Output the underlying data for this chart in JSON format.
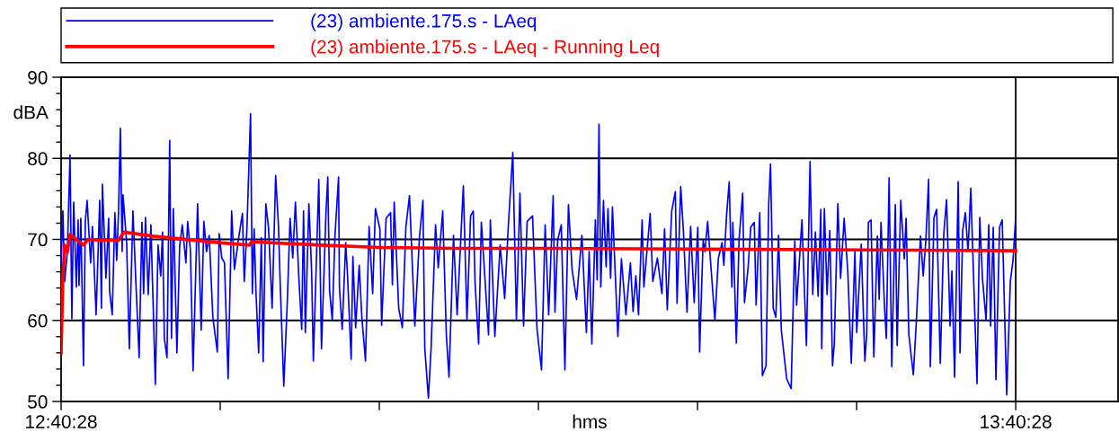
{
  "chart_data": {
    "type": "line",
    "xlabel": "hms",
    "ylabel": "dBA",
    "xlim": [
      12.67444,
      13.7817
    ],
    "ylim": [
      50,
      90
    ],
    "xticks": [
      {
        "value": 12.67444,
        "label": "12:40:28"
      },
      {
        "value": 12.84111,
        "label": null
      },
      {
        "value": 13.00778,
        "label": null
      },
      {
        "value": 13.17444,
        "label": null
      },
      {
        "value": 13.34111,
        "label": null
      },
      {
        "value": 13.50778,
        "label": null
      },
      {
        "value": 13.67444,
        "label": "13:40:28"
      }
    ],
    "yticks": [
      50,
      60,
      70,
      80,
      90
    ],
    "grid": "y",
    "legend": "top",
    "line_style": "solid",
    "marker": "none",
    "ref_lines": [
      {
        "axis": "x",
        "value": 13.67444,
        "label": null,
        "color": "#000000"
      }
    ],
    "series": [
      {
        "name": "(23) ambiente.175.s - LAeq",
        "color": "#0000ff",
        "x": [
          12.67444,
          12.6763,
          12.6782,
          12.681,
          12.6838,
          12.6857,
          12.6876,
          12.6904,
          12.6923,
          12.6932,
          12.6951,
          12.6979,
          12.6998,
          12.7017,
          12.7054,
          12.7073,
          12.7111,
          12.7149,
          12.7167,
          12.7177,
          12.7214,
          12.7243,
          12.7252,
          12.728,
          12.7308,
          12.7327,
          12.7346,
          12.7365,
          12.7384,
          12.7393,
          12.7431,
          12.7459,
          12.7497,
          12.7525,
          12.7562,
          12.7591,
          12.7609,
          12.7628,
          12.7657,
          12.7685,
          12.7732,
          12.776,
          12.7788,
          12.7807,
          12.7826,
          12.7854,
          12.7882,
          12.7901,
          12.792,
          12.7958,
          12.7986,
          12.8014,
          12.8052,
          12.807,
          12.8099,
          12.8127,
          12.8174,
          12.8212,
          12.824,
          12.8268,
          12.8296,
          12.8334,
          12.8381,
          12.84,
          12.8428,
          12.8456,
          12.8494,
          12.8531,
          12.856,
          12.8607,
          12.8644,
          12.8663,
          12.8691,
          12.8729,
          12.8748,
          12.8767,
          12.8785,
          12.8814,
          12.8842,
          12.8861,
          12.8889,
          12.8917,
          12.8955,
          12.8992,
          12.9021,
          12.9039,
          12.9077,
          12.9115,
          12.9143,
          12.9171,
          12.9199,
          12.9237,
          12.9265,
          12.9284,
          12.9303,
          12.934,
          12.9369,
          12.9387,
          12.9444,
          12.9472,
          12.9519,
          12.9538,
          12.9557,
          12.9585,
          12.9613,
          12.9651,
          12.966,
          12.9689,
          12.9726,
          12.9745,
          12.9783,
          12.9801,
          12.983,
          12.9867,
          12.9895,
          12.9933,
          12.9971,
          13.0008,
          13.0037,
          13.0084,
          13.0102,
          13.0149,
          13.0196,
          13.0215,
          13.0234,
          13.0281,
          13.0319,
          13.0356,
          13.0394,
          13.045,
          13.0498,
          13.0535,
          13.0554,
          13.0592,
          13.062,
          13.0667,
          13.0695,
          13.0742,
          13.078,
          13.0808,
          13.0855,
          13.0893,
          13.0958,
          13.0996,
          13.1034,
          13.1062,
          13.1081,
          13.1118,
          13.1147,
          13.1222,
          13.1241,
          13.1288,
          13.1344,
          13.1391,
          13.1429,
          13.1476,
          13.1514,
          13.1551,
          13.1589,
          13.1626,
          13.1683,
          13.173,
          13.1777,
          13.1815,
          13.1852,
          13.1899,
          13.1918,
          13.1946,
          13.1984,
          13.2022,
          13.2059,
          13.2097,
          13.2144,
          13.22,
          13.2247,
          13.2276,
          13.2304,
          13.2341,
          13.236,
          13.2379,
          13.2398,
          13.2426,
          13.2454,
          13.2473,
          13.2501,
          13.252,
          13.2577,
          13.2614,
          13.2661,
          13.2708,
          13.2736,
          13.2765,
          13.2793,
          13.2831,
          13.2849,
          13.2915,
          13.2943,
          13.2991,
          13.3038,
          13.3066,
          13.3094,
          13.3141,
          13.3179,
          13.3197,
          13.3235,
          13.3263,
          13.3301,
          13.3339,
          13.3376,
          13.3414,
          13.3433,
          13.347,
          13.3489,
          13.3517,
          13.3593,
          13.363,
          13.3668,
          13.3687,
          13.3715,
          13.3743,
          13.3771,
          13.3781,
          13.3818,
          13.3846,
          13.3884,
          13.3903,
          13.3941,
          13.3969,
          13.4006,
          13.4025,
          13.4063,
          13.4091,
          13.4129,
          13.4157,
          13.4176,
          13.4204,
          13.4232,
          13.426,
          13.4289,
          13.4345,
          13.4392,
          13.443,
          13.4449,
          13.4505,
          13.4552,
          13.459,
          13.4618,
          13.4646,
          13.4674,
          13.4703,
          13.4712,
          13.474,
          13.4768,
          13.4797,
          13.4825,
          13.4844,
          13.4881,
          13.491,
          13.4947,
          13.4985,
          13.5022,
          13.506,
          13.5079,
          13.5126,
          13.5164,
          13.5183,
          13.5201,
          13.5229,
          13.5258,
          13.5295,
          13.5314,
          13.5333,
          13.5371,
          13.5389,
          13.5418,
          13.5446,
          13.5483,
          13.5502,
          13.554,
          13.5577,
          13.5596,
          13.5625,
          13.5672,
          13.57,
          13.5747,
          13.5775,
          13.5803,
          13.5832,
          13.585,
          13.5888,
          13.5916,
          13.5954,
          13.5991,
          13.602,
          13.6057,
          13.6076,
          13.6104,
          13.6142,
          13.6161,
          13.6189,
          13.6217,
          13.6245,
          13.6274,
          13.6292,
          13.6339,
          13.6368,
          13.6396,
          13.6434,
          13.6462,
          13.6481,
          13.6509,
          13.6537,
          13.6575,
          13.6603,
          13.665,
          13.6688,
          13.6716,
          13.6744
        ],
        "values": [
          67.0,
          73.5,
          64.8,
          68.5,
          80.4,
          60.2,
          74.6,
          64.1,
          72.4,
          64.3,
          72.6,
          54.4,
          72.2,
          74.8,
          67.1,
          71.6,
          60.7,
          74.8,
          61.5,
          76.8,
          65.2,
          72.6,
          63.7,
          60.7,
          73.3,
          67.4,
          73.3,
          83.7,
          68.5,
          75.5,
          69.6,
          56.5,
          73.5,
          65.5,
          55.4,
          72.1,
          63.3,
          72.7,
          63.2,
          71.8,
          52.1,
          69.3,
          65.5,
          70.9,
          57.8,
          55.4,
          82.2,
          57.8,
          73.8,
          56.0,
          69.1,
          71.8,
          67.1,
          72.2,
          68.7,
          53.8,
          74.4,
          58.8,
          72.2,
          68.5,
          70.5,
          60.4,
          56.1,
          70.7,
          67.7,
          67.1,
          52.8,
          73.5,
          66.3,
          70.4,
          73.2,
          64.8,
          71.3,
          85.5,
          63.3,
          71.3,
          63.7,
          56.0,
          70.2,
          54.9,
          74.4,
          71.5,
          61.5,
          77.9,
          71.8,
          64.8,
          51.9,
          62.6,
          72.6,
          67.7,
          74.6,
          64.8,
          58.9,
          73.5,
          58.5,
          74.4,
          66.0,
          55.0,
          77.4,
          56.5,
          73.3,
          77.7,
          63.7,
          60.0,
          70.4,
          77.7,
          64.1,
          58.9,
          69.6,
          65.5,
          55.2,
          67.9,
          59.1,
          66.8,
          60.4,
          55.0,
          71.6,
          63.3,
          73.8,
          71.3,
          59.4,
          72.6,
          73.3,
          64.4,
          74.6,
          61.5,
          59.1,
          71.5,
          75.4,
          59.3,
          70.2,
          74.8,
          56.6,
          50.4,
          56.5,
          71.8,
          66.5,
          73.5,
          58.2,
          53.0,
          70.5,
          60.7,
          76.6,
          60.0,
          72.9,
          73.5,
          64.6,
          57.1,
          72.1,
          58.2,
          72.4,
          58.0,
          69.3,
          62.7,
          71.6,
          80.7,
          60.0,
          75.7,
          59.3,
          72.2,
          72.9,
          58.9,
          53.9,
          71.8,
          60.7,
          75.4,
          61.0,
          69.9,
          71.8,
          53.9,
          74.3,
          66.3,
          62.6,
          70.5,
          58.5,
          68.5,
          57.1,
          72.4,
          65.0,
          84.2,
          64.1,
          74.8,
          66.6,
          73.8,
          65.2,
          74.0,
          58.0,
          67.6,
          60.7,
          67.1,
          61.1,
          65.5,
          60.7,
          72.4,
          64.1,
          73.2,
          64.8,
          67.7,
          63.3,
          71.3,
          61.3,
          73.5,
          75.9,
          62.1,
          76.5,
          71.1,
          61.0,
          71.6,
          62.2,
          71.5,
          56.1,
          69.9,
          68.5,
          72.2,
          60.0,
          67.7,
          69.6,
          66.8,
          72.9,
          77.1,
          64.1,
          72.1,
          57.2,
          69.9,
          75.7,
          62.2,
          66.5,
          71.5,
          72.1,
          61.9,
          73.3,
          53.2,
          54.4,
          74.3,
          79.3,
          61.5,
          60.4,
          70.5,
          58.8,
          52.8,
          51.6,
          69.8,
          61.9,
          72.4,
          56.9,
          79.6,
          63.2,
          70.9,
          63.0,
          73.7,
          56.5,
          73.8,
          63.2,
          71.1,
          54.4,
          57.1,
          74.4,
          65.2,
          72.6,
          66.1,
          54.7,
          68.5,
          58.5,
          69.4,
          55.0,
          58.2,
          72.1,
          72.4,
          55.5,
          70.4,
          62.6,
          72.1,
          61.5,
          57.8,
          77.6,
          54.3,
          74.3,
          56.9,
          74.8,
          67.6,
          72.6,
          58.2,
          53.3,
          59.1,
          70.4,
          65.5,
          69.9,
          77.4,
          54.3,
          72.7,
          73.7,
          54.7,
          70.7,
          74.9,
          59.3,
          66.1,
          53.0,
          77.1,
          56.0,
          71.1,
          73.3,
          68.5,
          76.3,
          69.4,
          52.2,
          72.7,
          65.2,
          60.0,
          71.8,
          59.3,
          71.5,
          52.7,
          71.5,
          72.4,
          50.8,
          64.8,
          67.4,
          72.7
        ]
      },
      {
        "name": "(23) ambiente.175.s - LAeq - Running Leq",
        "color": "#ff0000",
        "x": [
          12.67444,
          12.6763,
          12.6782,
          12.681,
          12.6838,
          12.6979,
          12.7026,
          12.7158,
          12.7346,
          12.7403,
          12.7704,
          12.839,
          12.872,
          12.8738,
          12.9463,
          13.0084,
          13.0902,
          13.1777,
          13.347,
          13.5164,
          13.6744
        ],
        "values": [
          56.0,
          65.0,
          69.3,
          68.4,
          70.6,
          69.3,
          70.0,
          69.9,
          69.9,
          70.9,
          70.4,
          69.6,
          69.3,
          69.7,
          69.3,
          69.0,
          68.9,
          68.9,
          68.8,
          68.7,
          68.6
        ]
      }
    ]
  }
}
